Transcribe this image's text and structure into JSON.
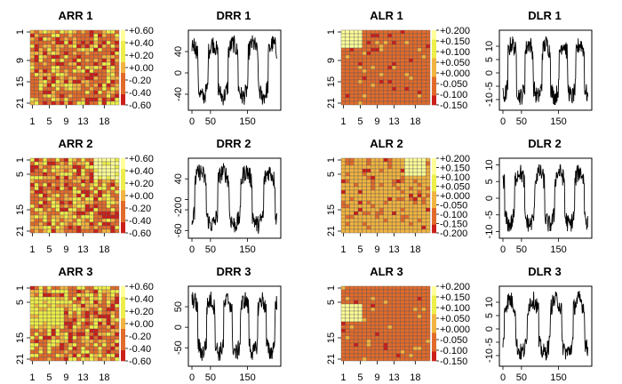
{
  "chart_data": {
    "type": "figure-grid",
    "colors": {
      "heat_low": "#cc1f1a",
      "heat_mid_low": "#e26b2c",
      "heat_mid": "#f2b440",
      "heat_high": "#eeee4a",
      "heat_top": "#ffff9a",
      "grid_line": "#555555",
      "line": "#000000"
    },
    "heatmap_axes": {
      "x_ticks": [
        "1",
        "5",
        "9",
        "13",
        "18"
      ],
      "y_ticks": [
        "1",
        "9",
        "15",
        "21"
      ],
      "y_ticks_panel2": [
        "1",
        "5",
        "15",
        "21"
      ]
    },
    "line_axes": {
      "x_ticks": [
        "0",
        "50",
        "150"
      ]
    },
    "panels": [
      {
        "title": "ARR 1",
        "type": "heatmap",
        "legend_ticks": [
          "+0.60",
          "+0.40",
          "+0.20",
          "+0.00",
          "-0.20",
          "-0.40",
          "-0.60"
        ],
        "y_ticks_key": "y_ticks",
        "pattern": "random_red"
      },
      {
        "title": "DRR 1",
        "type": "line",
        "y_ticks": [
          "40",
          "0",
          "-40"
        ],
        "y_range": [
          -70,
          80
        ],
        "x_range": [
          0,
          230
        ]
      },
      {
        "title": "ALR 1",
        "type": "heatmap",
        "legend_ticks": [
          "+0.200",
          "+0.150",
          "+0.100",
          "+0.050",
          "+0.000",
          "-0.050",
          "-0.100",
          "-0.150"
        ],
        "y_ticks_key": "y_ticks",
        "pattern": "block_top_left"
      },
      {
        "title": "DLR 1",
        "type": "line",
        "y_ticks": [
          "10",
          "5",
          "0",
          "-5",
          "-10"
        ],
        "y_range": [
          -14,
          16
        ],
        "x_range": [
          0,
          230
        ]
      },
      {
        "title": "ARR 2",
        "type": "heatmap",
        "legend_ticks": [
          "+0.60",
          "+0.40",
          "+0.20",
          "+0.00",
          "-0.20",
          "-0.40",
          "-0.60"
        ],
        "y_ticks_key": "y_ticks_panel2",
        "pattern": "random_yellow_topright"
      },
      {
        "title": "DRR 2",
        "type": "line",
        "y_ticks": [
          "40",
          "0",
          "-20",
          "-60"
        ],
        "y_range": [
          -75,
          80
        ],
        "x_range": [
          0,
          230
        ]
      },
      {
        "title": "ALR 2",
        "type": "heatmap",
        "legend_ticks": [
          "+0.200",
          "+0.150",
          "+0.100",
          "+0.050",
          "+0.000",
          "-0.050",
          "-0.100",
          "-0.150",
          "-0.200"
        ],
        "y_ticks_key": "y_ticks_panel2",
        "pattern": "block_top_right"
      },
      {
        "title": "DLR 2",
        "type": "line",
        "y_ticks": [
          "10",
          "5",
          "0",
          "-5",
          "-10"
        ],
        "y_range": [
          -12,
          12
        ],
        "x_range": [
          0,
          230
        ]
      },
      {
        "title": "ARR 3",
        "type": "heatmap",
        "legend_ticks": [
          "+0.60",
          "+0.40",
          "+0.20",
          "+0.00",
          "-0.20",
          "-0.40",
          "-0.60"
        ],
        "y_ticks_key": "y_ticks_panel2",
        "pattern": "random_yellow_left"
      },
      {
        "title": "DRR 3",
        "type": "line",
        "y_ticks": [
          "50",
          "0",
          "-50"
        ],
        "y_range": [
          -95,
          100
        ],
        "x_range": [
          0,
          230
        ]
      },
      {
        "title": "ALR 3",
        "type": "heatmap",
        "legend_ticks": [
          "+0.200",
          "+0.150",
          "+0.100",
          "+0.050",
          "+0.000",
          "-0.050",
          "-0.100",
          "-0.150"
        ],
        "y_ticks_key": "y_ticks_panel2",
        "pattern": "block_mid_left"
      },
      {
        "title": "DLR 3",
        "type": "line",
        "y_ticks": [
          "10",
          "5",
          "0",
          "-5",
          "-10"
        ],
        "y_range": [
          -14,
          16
        ],
        "x_range": [
          0,
          230
        ]
      }
    ]
  }
}
